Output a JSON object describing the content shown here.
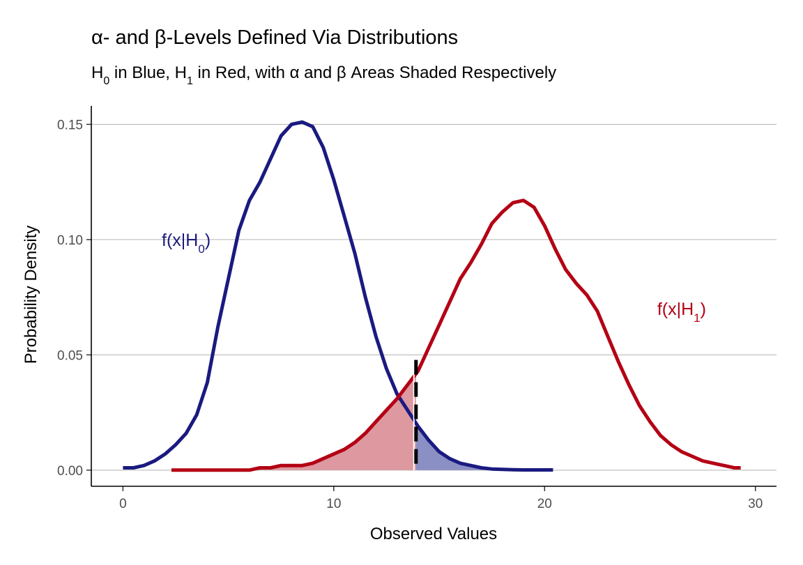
{
  "chart_data": {
    "type": "line",
    "title": "α- and β-Levels Defined Via Distributions",
    "subtitle": {
      "h0": "H",
      "h0_sub": "0",
      "t1": " in Blue, ",
      "h1": "H",
      "h1_sub": "1",
      "t2": " in Red, with α and β Areas Shaded Respectively"
    },
    "xlabel": "Observed Values",
    "ylabel": "Probability Density",
    "xlim": [
      -1.5,
      31
    ],
    "ylim": [
      -0.007,
      0.158
    ],
    "x_ticks": [
      0,
      10,
      20,
      30
    ],
    "x_tick_labels": [
      "0",
      "10",
      "20",
      "30"
    ],
    "y_ticks": [
      0,
      0.05,
      0.1,
      0.15
    ],
    "y_tick_labels": [
      "0.00",
      "0.05",
      "0.10",
      "0.15"
    ],
    "grid": "horizontal major",
    "critical_value": 13.9,
    "annotations": [
      {
        "text": "f(x|H",
        "sub": "0",
        "close": ")",
        "x": 3.0,
        "y": 0.1,
        "color": "#1a1a80"
      },
      {
        "text": "f(x|H",
        "sub": "1",
        "close": ")",
        "x": 26.5,
        "y": 0.07,
        "color": "#b40014"
      }
    ],
    "series": [
      {
        "color": "#1a1a80",
        "fill_color": "#8a8fc4",
        "x": [
          0,
          0.5,
          1,
          1.5,
          2,
          2.5,
          3,
          3.5,
          4,
          4.5,
          5,
          5.5,
          6,
          6.5,
          7,
          7.5,
          8,
          8.5,
          9,
          9.5,
          10,
          10.5,
          11,
          11.5,
          12,
          12.5,
          13,
          13.5,
          14,
          14.5,
          15,
          15.5,
          16,
          16.5,
          17,
          17.5,
          18,
          18.5,
          19,
          19.5,
          20,
          20.4
        ],
        "y": [
          0.001,
          0.001,
          0.002,
          0.004,
          0.007,
          0.011,
          0.016,
          0.024,
          0.038,
          0.062,
          0.083,
          0.104,
          0.117,
          0.125,
          0.135,
          0.145,
          0.15,
          0.151,
          0.149,
          0.14,
          0.126,
          0.11,
          0.094,
          0.075,
          0.058,
          0.044,
          0.033,
          0.026,
          0.019,
          0.013,
          0.008,
          0.005,
          0.003,
          0.002,
          0.001,
          0.0005,
          0.0003,
          0.0002,
          0.0001,
          0.0001,
          0.0001,
          0.0001
        ]
      },
      {
        "color": "#b40014",
        "fill_color": "#dd999f",
        "x": [
          2.3,
          3,
          4,
          5,
          6,
          6.5,
          7,
          7.5,
          8,
          8.5,
          9,
          9.5,
          10,
          10.5,
          11,
          11.5,
          12,
          12.5,
          13,
          13.5,
          14,
          14.5,
          15,
          15.5,
          16,
          16.5,
          17,
          17.5,
          18,
          18.5,
          19,
          19.5,
          20,
          20.5,
          21,
          21.5,
          22,
          22.5,
          23,
          23.5,
          24,
          24.5,
          25,
          25.5,
          26,
          26.5,
          27,
          27.5,
          28,
          28.5,
          29,
          29.3
        ],
        "y": [
          0,
          0,
          0,
          0,
          0,
          0.001,
          0.001,
          0.002,
          0.002,
          0.002,
          0.003,
          0.005,
          0.007,
          0.009,
          0.012,
          0.016,
          0.021,
          0.026,
          0.031,
          0.037,
          0.043,
          0.053,
          0.063,
          0.073,
          0.083,
          0.09,
          0.098,
          0.107,
          0.112,
          0.116,
          0.117,
          0.114,
          0.106,
          0.096,
          0.087,
          0.081,
          0.076,
          0.069,
          0.058,
          0.047,
          0.037,
          0.028,
          0.021,
          0.015,
          0.011,
          0.008,
          0.006,
          0.004,
          0.003,
          0.002,
          0.001,
          0.001
        ]
      }
    ]
  }
}
